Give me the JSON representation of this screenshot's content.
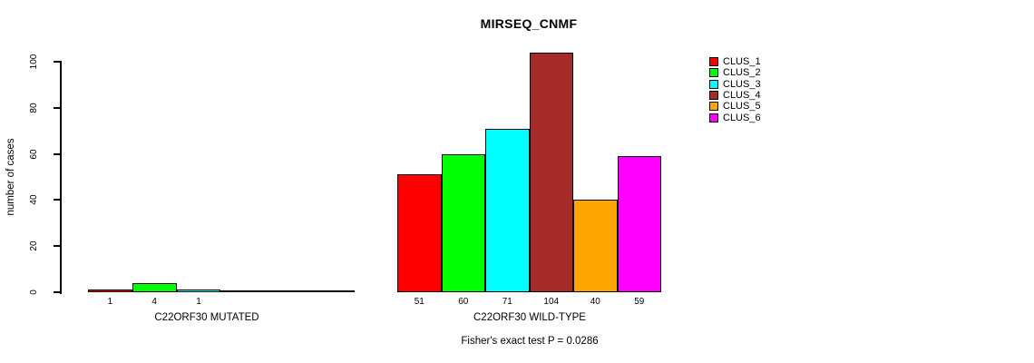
{
  "page": {
    "background": "#ffffff",
    "text_color": "#000000"
  },
  "chart_data": {
    "type": "bar",
    "title": "MIRSEQ_CNMF",
    "ylabel": "number of cases",
    "xlabel": "",
    "ylim": [
      0,
      104
    ],
    "yticks": [
      0,
      20,
      40,
      60,
      80,
      100
    ],
    "grid": false,
    "legend_position": "right",
    "clusters": [
      {
        "name": "CLUS_1",
        "color": "#FF0000"
      },
      {
        "name": "CLUS_2",
        "color": "#00FF00"
      },
      {
        "name": "CLUS_3",
        "color": "#00FFFF"
      },
      {
        "name": "CLUS_4",
        "color": "#A52A2A"
      },
      {
        "name": "CLUS_5",
        "color": "#FFA500"
      },
      {
        "name": "CLUS_6",
        "color": "#FF00FF"
      }
    ],
    "groups": [
      {
        "label": "C22ORF30 MUTATED",
        "values": [
          1,
          4,
          1,
          0,
          0,
          0
        ]
      },
      {
        "label": "C22ORF30 WILD-TYPE",
        "values": [
          51,
          60,
          71,
          104,
          40,
          59
        ]
      }
    ],
    "annotation": "Fisher's exact test P = 0.0286"
  }
}
